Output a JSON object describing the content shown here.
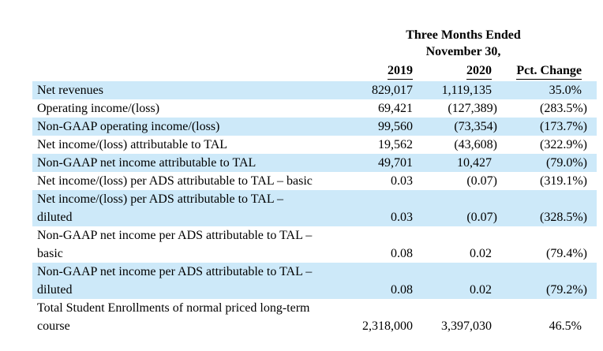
{
  "table": {
    "colors": {
      "row_highlight": "#cde9f9"
    },
    "header": {
      "period_line1": "Three Months Ended",
      "period_line2": "November 30,",
      "col_2019": "2019",
      "col_2020": "2020",
      "col_pct": "Pct. Change"
    },
    "rows": [
      {
        "label": "Net revenues",
        "v2019": "829,017",
        "v2020": "1,119,135",
        "pct": "35.0%"
      },
      {
        "label": "Operating income/(loss)",
        "v2019": "69,421",
        "v2020": "(127,389)",
        "pct": "(283.5%)"
      },
      {
        "label": "Non-GAAP operating income/(loss)",
        "v2019": "99,560",
        "v2020": "(73,354)",
        "pct": "(173.7%)"
      },
      {
        "label": "Net income/(loss) attributable to TAL",
        "v2019": "19,562",
        "v2020": "(43,608)",
        "pct": "(322.9%)"
      },
      {
        "label": "Non-GAAP net income attributable to TAL",
        "v2019": "49,701",
        "v2020": "10,427",
        "pct": "(79.0%)"
      },
      {
        "label": "Net income/(loss) per ADS attributable to TAL – basic",
        "v2019": "0.03",
        "v2020": "(0.07)",
        "pct": "(319.1%)"
      },
      {
        "label": "Net income/(loss) per ADS attributable to TAL –\ndiluted",
        "v2019": "0.03",
        "v2020": "(0.07)",
        "pct": "(328.5%)"
      },
      {
        "label": "Non-GAAP net income per ADS attributable to TAL –\nbasic",
        "v2019": "0.08",
        "v2020": "0.02",
        "pct": "(79.4%)"
      },
      {
        "label": "Non-GAAP net income per ADS attributable to TAL –\ndiluted",
        "v2019": "0.08",
        "v2020": "0.02",
        "pct": "(79.2%)"
      },
      {
        "label": "Total Student Enrollments of normal priced long-term\ncourse",
        "v2019": "2,318,000",
        "v2020": "3,397,030",
        "pct": "46.5%"
      }
    ]
  }
}
